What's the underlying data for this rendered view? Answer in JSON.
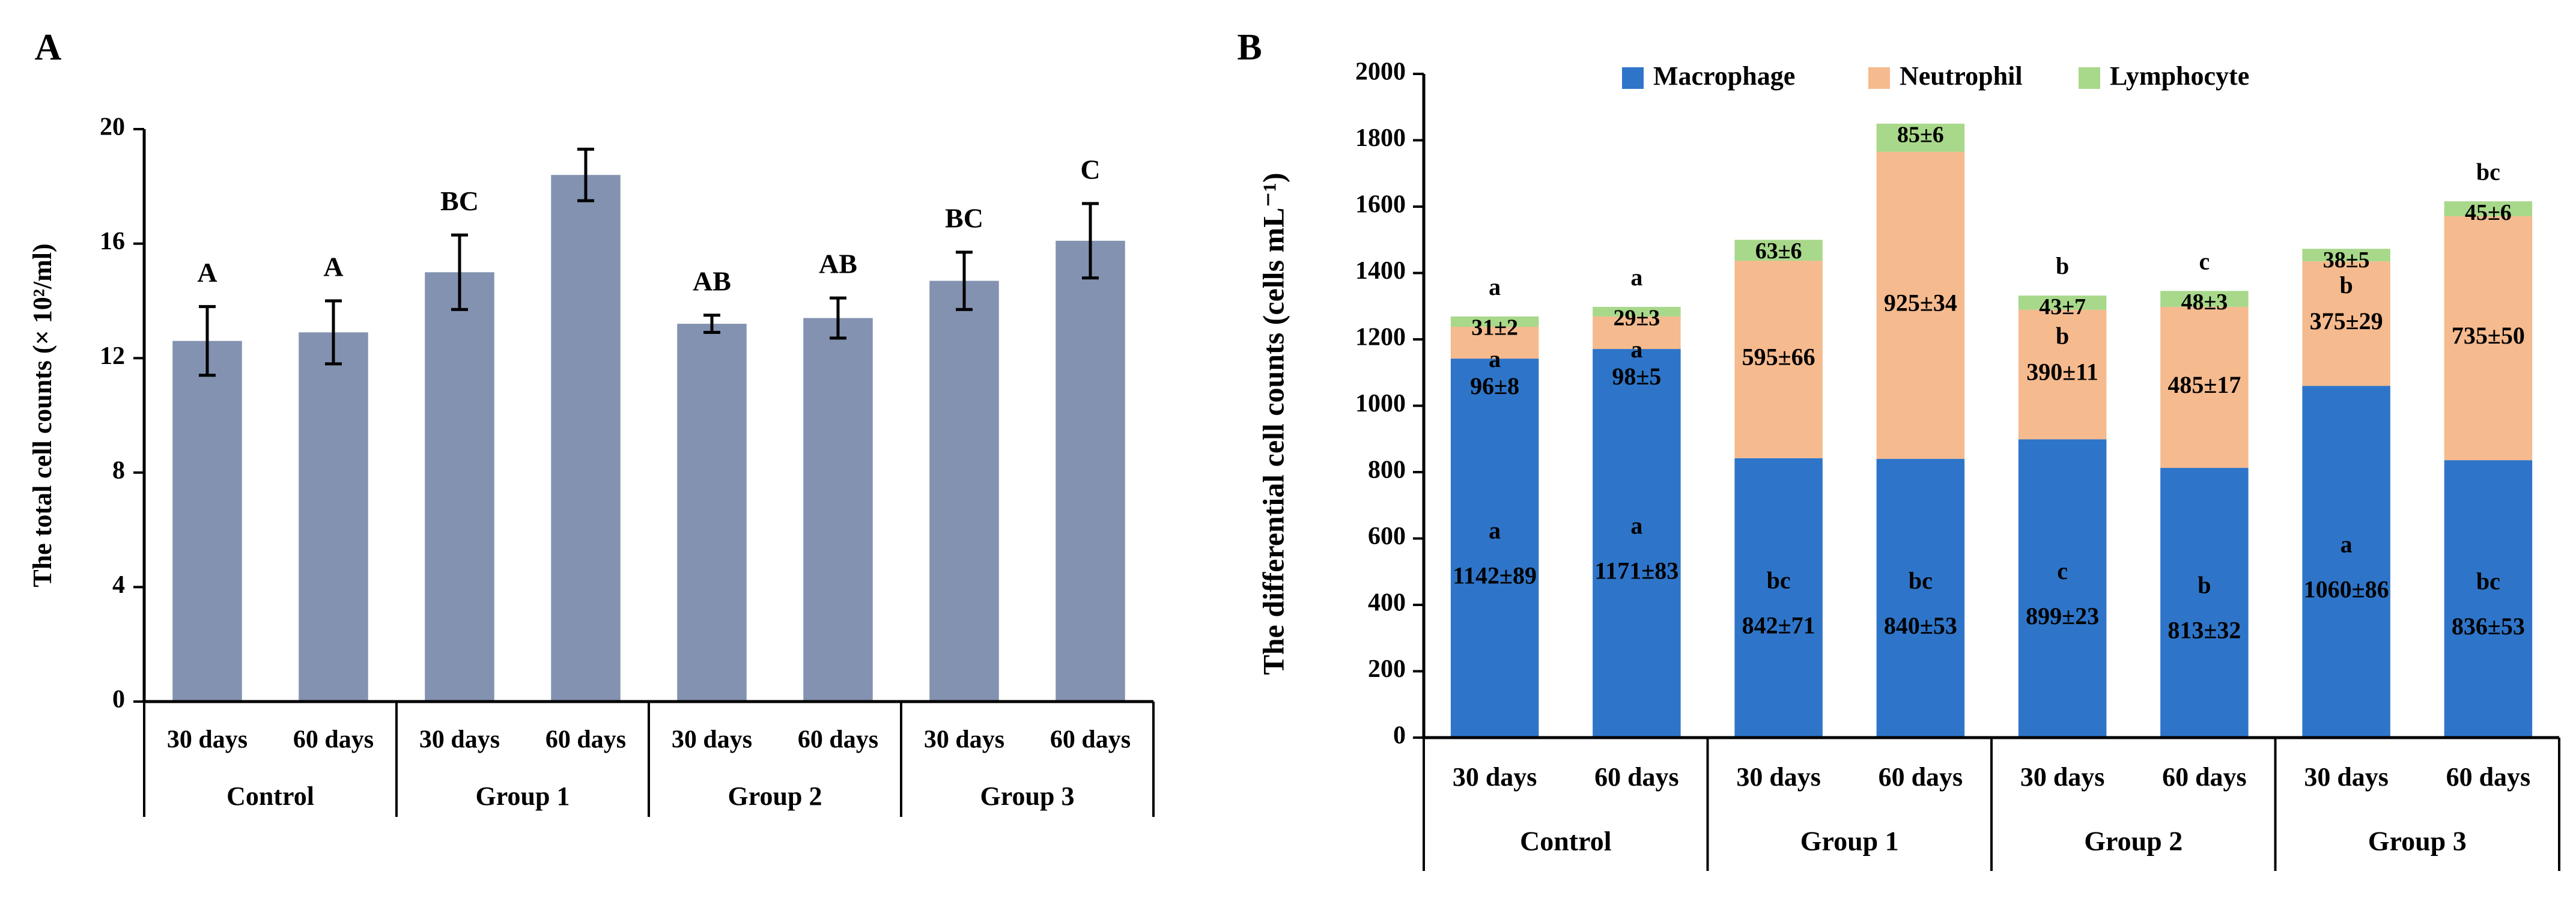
{
  "chart_data": [
    {
      "panel_label": "A",
      "type": "bar",
      "title": "",
      "xlabel": "",
      "ylabel": "The total cell counts (× 10²/ml)",
      "ylim": [
        0,
        20
      ],
      "yticks": [
        "0",
        "4",
        "8",
        "12",
        "16",
        "20"
      ],
      "categories": [
        "30 days",
        "60 days",
        "30 days",
        "60 days",
        "30 days",
        "60 days",
        "30 days",
        "60 days"
      ],
      "groups": [
        "Control",
        "Group 1",
        "Group 2",
        "Group 3"
      ],
      "values": [
        12.6,
        12.9,
        15.0,
        18.4,
        13.2,
        13.4,
        14.7,
        16.1
      ],
      "errors": [
        1.2,
        1.1,
        1.3,
        0.9,
        0.3,
        0.7,
        1.0,
        1.3
      ],
      "letters": [
        "A",
        "A",
        "BC",
        "",
        "AB",
        "AB",
        "BC",
        "C"
      ],
      "colors": {
        "bar": "#8392B0"
      }
    },
    {
      "panel_label": "B",
      "type": "bar",
      "stacked": true,
      "title": "",
      "xlabel": "",
      "ylabel": "The differential cell counts (cells mL⁻¹)",
      "ylim": [
        0,
        2000
      ],
      "yticks": [
        "0",
        "200",
        "400",
        "600",
        "800",
        "1000",
        "1200",
        "1400",
        "1600",
        "1800",
        "2000"
      ],
      "legend_position": "top",
      "categories": [
        "30 days",
        "60 days",
        "30 days",
        "60 days",
        "30 days",
        "60 days",
        "30 days",
        "60 days"
      ],
      "groups": [
        "Control",
        "Group 1",
        "Group 2",
        "Group 3"
      ],
      "series": [
        {
          "name": "Macrophage",
          "color": "#2E75C9",
          "values": [
            1142,
            1171,
            842,
            840,
            899,
            813,
            1060,
            836
          ],
          "labels": [
            "1142±89",
            "1171±83",
            "842±71",
            "840±53",
            "899±23",
            "813±32",
            "1060±86",
            "836±53"
          ],
          "letters": [
            "a",
            "a",
            "bc",
            "bc",
            "c",
            "b",
            "a",
            "bc"
          ]
        },
        {
          "name": "Neutrophil",
          "color": "#F5BA8E",
          "values": [
            96,
            98,
            595,
            925,
            390,
            485,
            375,
            735
          ],
          "labels": [
            "96±8",
            "98±5",
            "595±66",
            "925±34",
            "390±11",
            "485±17",
            "375±29",
            "735±50"
          ],
          "letters": [
            "a",
            "a",
            "",
            "",
            "b",
            "",
            "b",
            ""
          ]
        },
        {
          "name": "Lymphocyte",
          "color": "#A8D88A",
          "values": [
            31,
            29,
            63,
            85,
            43,
            48,
            38,
            45
          ],
          "labels": [
            "31±2",
            "29±3",
            "63±6",
            "85±6",
            "43±7",
            "48±3",
            "38±5",
            "45±6"
          ],
          "letters": [
            "a",
            "a",
            "",
            "",
            "b",
            "c",
            "",
            "bc"
          ]
        }
      ]
    }
  ]
}
